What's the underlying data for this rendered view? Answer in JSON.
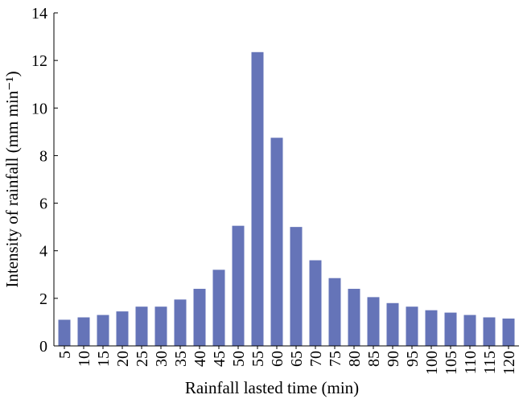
{
  "chart_data": {
    "type": "bar",
    "xlabel": "Rainfall lasted time (min)",
    "ylabel": "Intensity of rainfall (mm min⁻¹)",
    "categories": [
      "5",
      "10",
      "15",
      "20",
      "25",
      "30",
      "35",
      "40",
      "45",
      "50",
      "55",
      "60",
      "65",
      "70",
      "75",
      "80",
      "85",
      "90",
      "95",
      "100",
      "105",
      "110",
      "115",
      "120"
    ],
    "values": [
      1.1,
      1.2,
      1.3,
      1.45,
      1.65,
      1.65,
      1.95,
      2.4,
      3.2,
      5.05,
      12.35,
      8.75,
      5.0,
      3.6,
      2.85,
      2.4,
      2.05,
      1.8,
      1.65,
      1.5,
      1.4,
      1.3,
      1.2,
      1.15
    ],
    "ylim": [
      0,
      14
    ],
    "yticks": [
      "0",
      "2",
      "4",
      "6",
      "8",
      "10",
      "12",
      "14"
    ],
    "bar_color": "#6574b8",
    "grid": false,
    "legend": "none"
  }
}
